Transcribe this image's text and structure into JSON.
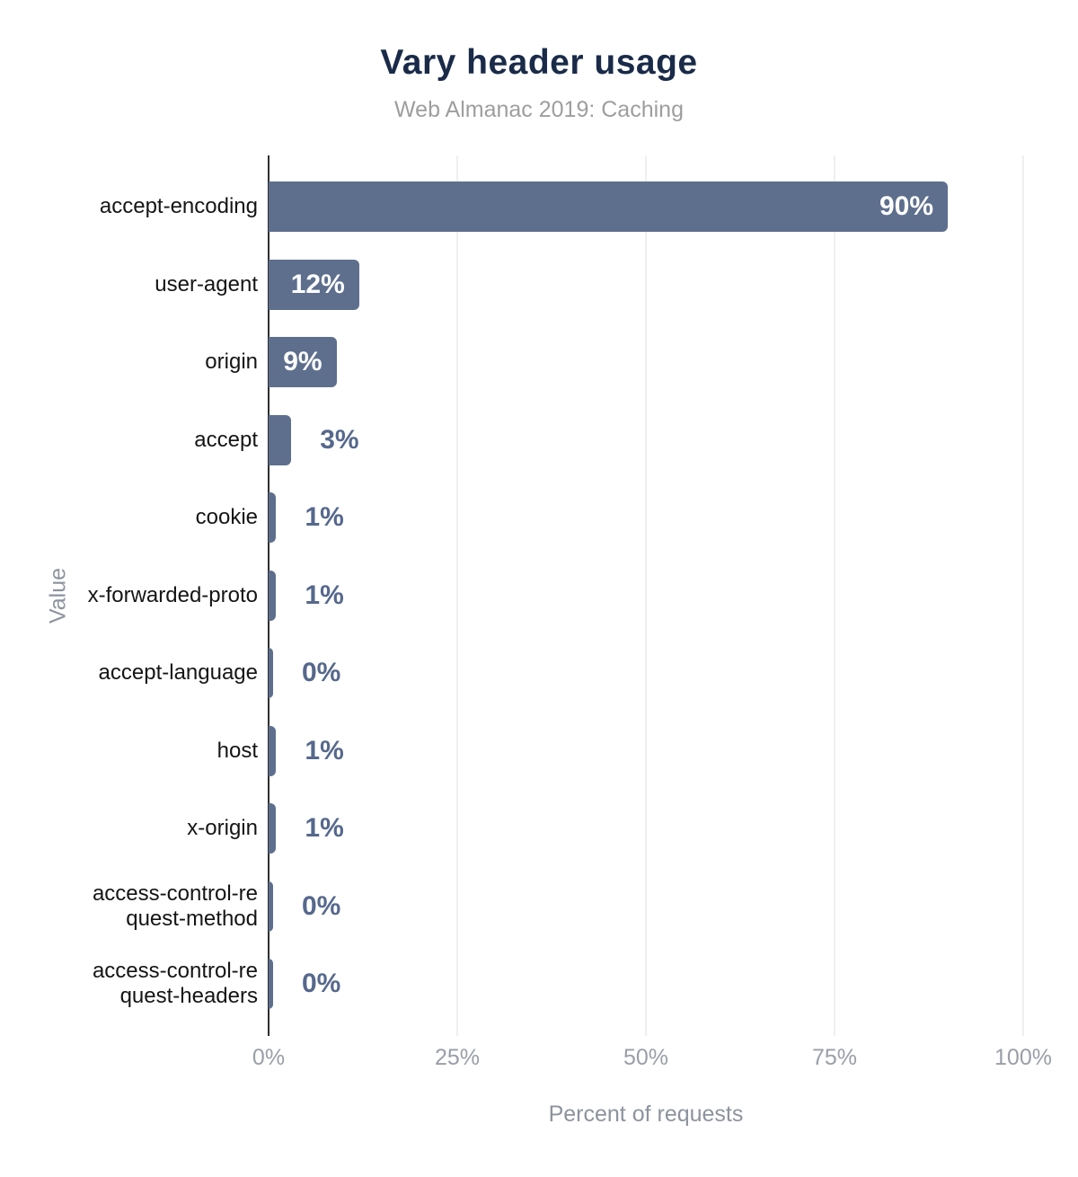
{
  "chart_data": {
    "type": "bar",
    "orientation": "horizontal",
    "title": "Vary header usage",
    "subtitle": "Web Almanac 2019: Caching",
    "xlabel": "Percent of requests",
    "ylabel": "Value",
    "xlim": [
      0,
      100
    ],
    "grid": true,
    "x_ticks": [
      "0%",
      "25%",
      "50%",
      "75%",
      "100%"
    ],
    "x_tick_values": [
      0,
      25,
      50,
      75,
      100
    ],
    "categories": [
      "accept-encoding",
      "user-agent",
      "origin",
      "accept",
      "cookie",
      "x-forwarded-proto",
      "accept-language",
      "host",
      "x-origin",
      "access-control-request-method",
      "access-control-request-headers"
    ],
    "category_display_lines": [
      [
        "accept-encoding"
      ],
      [
        "user-agent"
      ],
      [
        "origin"
      ],
      [
        "accept"
      ],
      [
        "cookie"
      ],
      [
        "x-forwarded-proto"
      ],
      [
        "accept-language"
      ],
      [
        "host"
      ],
      [
        "x-origin"
      ],
      [
        "access-control-re",
        "quest-method"
      ],
      [
        "access-control-re",
        "quest-headers"
      ]
    ],
    "values": [
      90,
      12,
      9,
      3,
      1,
      1,
      0,
      1,
      1,
      0,
      0
    ],
    "value_labels": [
      "90%",
      "12%",
      "9%",
      "3%",
      "1%",
      "1%",
      "0%",
      "1%",
      "1%",
      "0%",
      "0%"
    ],
    "colors": {
      "bar": "#5e6f8d",
      "value_label_inside": "#ffffff",
      "value_label_outside": "#56688c",
      "title": "#1a2b49",
      "subtitle": "#9e9e9e",
      "category_label": "#151515",
      "tick_label": "#999ea7",
      "axis_title": "#8d939e",
      "axis_line": "#2f2f2f",
      "gridline": "#efefef"
    }
  }
}
